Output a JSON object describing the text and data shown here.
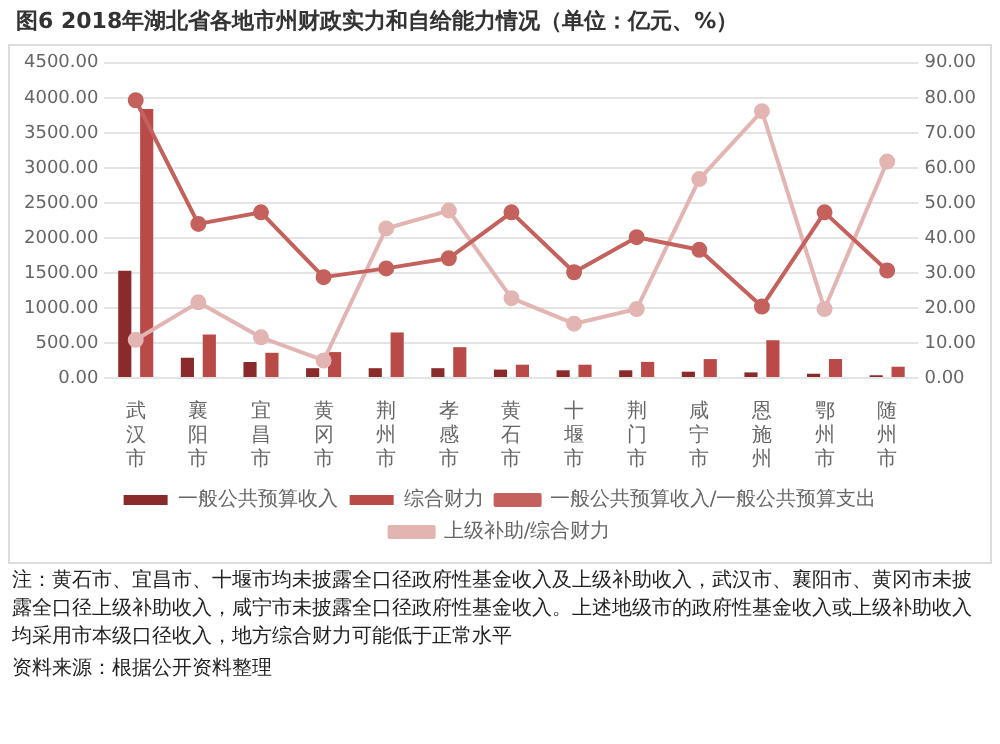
{
  "chart_data": {
    "type": "bar",
    "title": "图6   2018年湖北省各地市州财政实力和自给能力情况（单位：亿元、%）",
    "categories": [
      "武汉市",
      "襄阳市",
      "宜昌市",
      "黄冈市",
      "荆州市",
      "孝感市",
      "黄石市",
      "十堰市",
      "荆门市",
      "咸宁市",
      "恩施州",
      "鄂州市",
      "随州市"
    ],
    "series": [
      {
        "name": "一般公共预算收入",
        "color": "#8b2a2a",
        "values": [
          1530,
          290,
          230,
          140,
          140,
          140,
          120,
          110,
          110,
          90,
          80,
          60,
          40
        ]
      },
      {
        "name": "综合财力",
        "color": "#b94a48",
        "values": [
          3840,
          620,
          360,
          370,
          650,
          440,
          190,
          190,
          230,
          270,
          540,
          270,
          160
        ]
      },
      {
        "name": "一般公共预算收入/一般公共预算支出",
        "type": "line",
        "axis": "y2",
        "color": "#c4615d",
        "values": [
          79.3,
          44.0,
          47.3,
          28.8,
          31.3,
          34.2,
          47.3,
          30.2,
          40.2,
          36.6,
          20.4,
          47.3,
          30.7
        ]
      },
      {
        "name": "上级补助/综合财力",
        "type": "line",
        "axis": "y2",
        "color": "#e2b5b3",
        "values": [
          10.9,
          21.6,
          11.6,
          5.0,
          42.7,
          47.8,
          22.8,
          15.5,
          19.7,
          56.8,
          76.2,
          19.7,
          61.8
        ]
      }
    ],
    "ylim": [
      0,
      4500
    ],
    "yticks": [
      {
        "value": 0,
        "label": "0.00"
      },
      {
        "value": 500,
        "label": "500.00"
      },
      {
        "value": 1000,
        "label": "1000.00"
      },
      {
        "value": 1500,
        "label": "1500.00"
      },
      {
        "value": 2000,
        "label": "2000.00"
      },
      {
        "value": 2500,
        "label": "2500.00"
      },
      {
        "value": 3000,
        "label": "3000.00"
      },
      {
        "value": 3500,
        "label": "3500.00"
      },
      {
        "value": 4000,
        "label": "4000.00"
      },
      {
        "value": 4500,
        "label": "4500.00"
      }
    ],
    "y2lim": [
      0,
      90
    ],
    "y2ticks": [
      {
        "value": 0,
        "label": "0.00"
      },
      {
        "value": 10,
        "label": "10.00"
      },
      {
        "value": 20,
        "label": "20.00"
      },
      {
        "value": 30,
        "label": "30.00"
      },
      {
        "value": 40,
        "label": "40.00"
      },
      {
        "value": 50,
        "label": "50.00"
      },
      {
        "value": 60,
        "label": "60.00"
      },
      {
        "value": 70,
        "label": "70.00"
      },
      {
        "value": 80,
        "label": "80.00"
      },
      {
        "value": 90,
        "label": "90.00"
      }
    ],
    "grid": "y",
    "legend": "bottom",
    "marker": "circle",
    "line_style": "solid",
    "annotations": [
      "注：黄石市、宜昌市、十堰市均未披露全口径政府性基金收入及上级补助收入，武汉市、襄阳市、黄冈市未披露全口径上级补助收入，咸宁市未披露全口径政府性基金收入。上述地级市的政府性基金收入或上级补助收入均采用市本级口径收入，地方综合财力可能低于正常水平",
      "资料来源：根据公开资料整理"
    ]
  }
}
